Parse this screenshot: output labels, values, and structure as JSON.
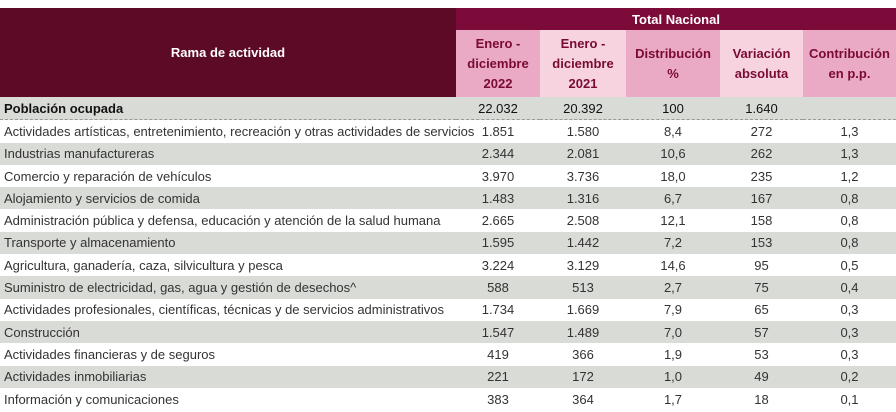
{
  "header": {
    "rama": "Rama de actividad",
    "total": "Total Nacional",
    "cols": [
      [
        "Enero -",
        "diciembre",
        "2022"
      ],
      [
        "Enero -",
        "diciembre",
        "2021"
      ],
      [
        "Distribución",
        "%"
      ],
      [
        "Variación",
        "absoluta"
      ],
      [
        "Contribución",
        "en p.p."
      ]
    ]
  },
  "total_row": {
    "label": "Población ocupada",
    "values": [
      "22.032",
      "20.392",
      "100",
      "1.640",
      ""
    ]
  },
  "rows": [
    {
      "label": "Actividades artísticas, entretenimiento, recreación y otras actividades de servicios",
      "values": [
        "1.851",
        "1.580",
        "8,4",
        "272",
        "1,3"
      ]
    },
    {
      "label": "Industrias manufactureras",
      "values": [
        "2.344",
        "2.081",
        "10,6",
        "262",
        "1,3"
      ]
    },
    {
      "label": "Comercio y reparación de vehículos",
      "values": [
        "3.970",
        "3.736",
        "18,0",
        "235",
        "1,2"
      ]
    },
    {
      "label": "Alojamiento y servicios de comida",
      "values": [
        "1.483",
        "1.316",
        "6,7",
        "167",
        "0,8"
      ]
    },
    {
      "label": "Administración pública y defensa, educación y atención de la salud humana",
      "values": [
        "2.665",
        "2.508",
        "12,1",
        "158",
        "0,8"
      ]
    },
    {
      "label": "Transporte y almacenamiento",
      "values": [
        "1.595",
        "1.442",
        "7,2",
        "153",
        "0,8"
      ]
    },
    {
      "label": "Agricultura, ganadería, caza, silvicultura y pesca",
      "values": [
        "3.224",
        "3.129",
        "14,6",
        "95",
        "0,5"
      ]
    },
    {
      "label": "Suministro de electricidad, gas, agua y gestión de desechos^",
      "values": [
        "588",
        "513",
        "2,7",
        "75",
        "0,4"
      ]
    },
    {
      "label": "Actividades profesionales, científicas, técnicas y de servicios administrativos",
      "values": [
        "1.734",
        "1.669",
        "7,9",
        "65",
        "0,3"
      ]
    },
    {
      "label": "Construcción",
      "values": [
        "1.547",
        "1.489",
        "7,0",
        "57",
        "0,3"
      ]
    },
    {
      "label": "Actividades financieras y de seguros",
      "values": [
        "419",
        "366",
        "1,9",
        "53",
        "0,3"
      ]
    },
    {
      "label": "Actividades inmobiliarias",
      "values": [
        "221",
        "172",
        "1,0",
        "49",
        "0,2"
      ]
    },
    {
      "label": "Información y comunicaciones",
      "values": [
        "383",
        "364",
        "1,7",
        "18",
        "0,1"
      ]
    }
  ]
}
